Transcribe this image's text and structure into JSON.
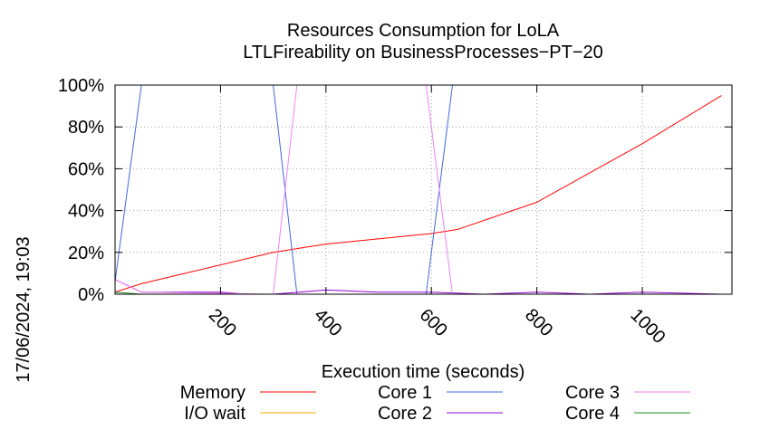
{
  "chart_data": {
    "type": "line",
    "title": [
      "Resources Consumption for LoLA",
      "LTLFireability on BusinessProcesses−PT−20"
    ],
    "xlabel": "Execution time (seconds)",
    "ylabel": "",
    "side_label": "17/06/2024, 19:03",
    "xlim": [
      0,
      1170
    ],
    "ylim": [
      0,
      100
    ],
    "x_ticks": [
      200,
      400,
      600,
      800,
      1000
    ],
    "y_ticks": [
      0,
      20,
      40,
      60,
      80,
      100
    ],
    "y_tick_labels": [
      "0%",
      "20%",
      "40%",
      "60%",
      "80%",
      "100%"
    ],
    "grid": true,
    "legend_position": "bottom",
    "series": [
      {
        "name": "Memory",
        "color": "#ff0000",
        "x": [
          0,
          50,
          300,
          400,
          600,
          650,
          800,
          1000,
          1150
        ],
        "y": [
          1,
          5,
          20,
          24,
          29,
          31,
          44,
          72,
          95
        ]
      },
      {
        "name": "I/O wait",
        "color": "#ffa500",
        "x": [
          0,
          1150
        ],
        "y": [
          0,
          0
        ]
      },
      {
        "name": "Core 1",
        "color": "#4169e1",
        "x": [
          0,
          50,
          300,
          345,
          590,
          640,
          1150
        ],
        "y": [
          6,
          100,
          100,
          0,
          0,
          100,
          100
        ]
      },
      {
        "name": "Core 2",
        "color": "#9400d3",
        "x": [
          0,
          50,
          100,
          200,
          250,
          300,
          400,
          500,
          600,
          700,
          800,
          900,
          1000,
          1150
        ],
        "y": [
          7,
          1,
          1,
          1,
          0,
          0,
          2,
          1,
          1,
          0,
          1,
          0,
          1,
          0
        ]
      },
      {
        "name": "Core 3",
        "color": "#ee82ee",
        "x": [
          0,
          50,
          300,
          345,
          590,
          640,
          1150
        ],
        "y": [
          7,
          1,
          0,
          100,
          100,
          0,
          0
        ]
      },
      {
        "name": "Core 4",
        "color": "#228b22",
        "x": [
          0,
          50,
          1150
        ],
        "y": [
          1,
          0,
          0
        ]
      }
    ]
  }
}
